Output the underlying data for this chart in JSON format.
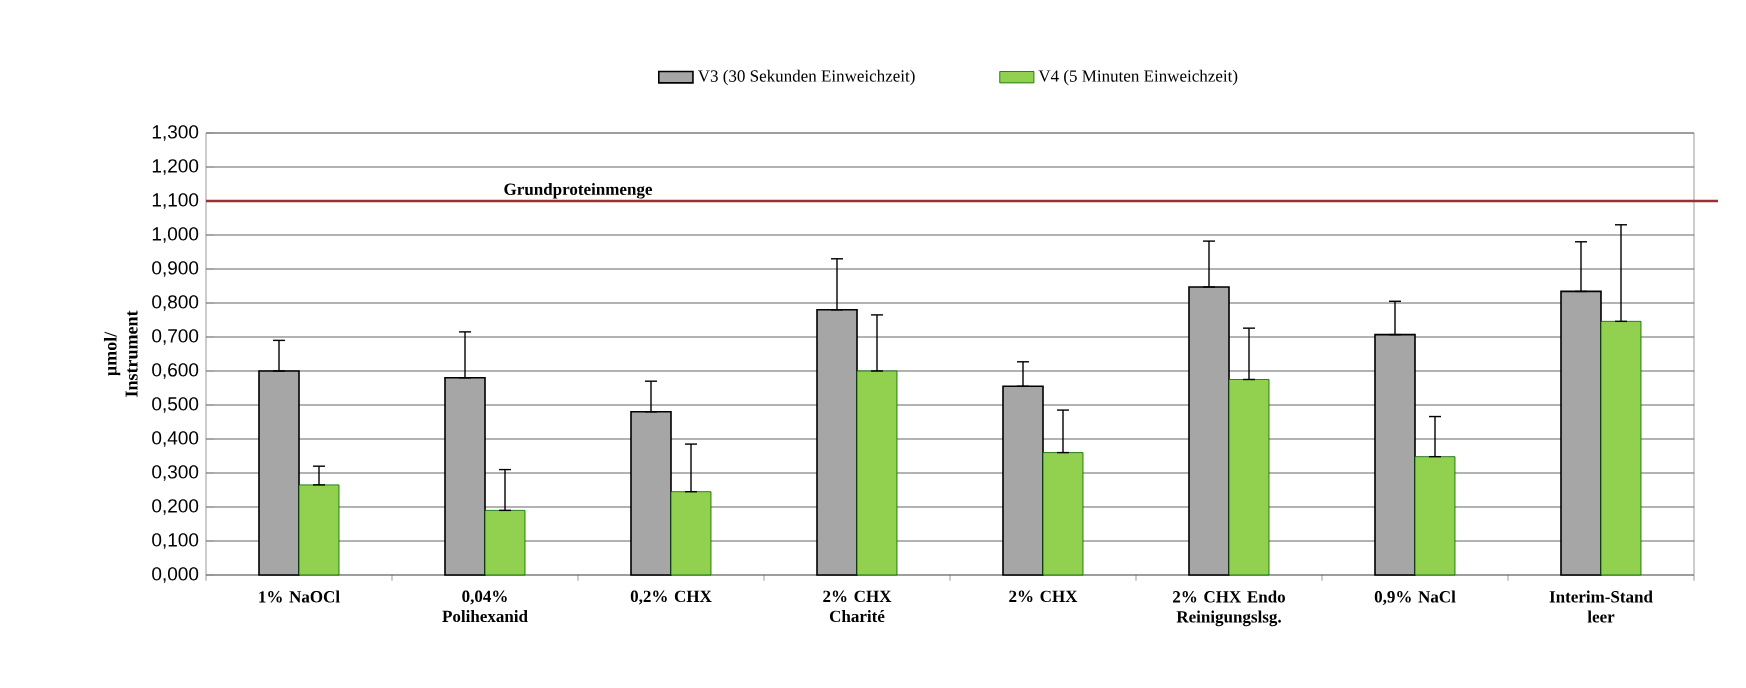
{
  "chart_data": {
    "type": "bar",
    "ylabel": "µmol/ Instrument",
    "categories": [
      "1% NaOCl",
      "0,04% Polihexanid",
      "0,2% CHX",
      "2% CHX Charité",
      "2% CHX",
      "2% CHX Endo Reinigungslsg.",
      "0,9% NaCl",
      "Interim-Stand leer"
    ],
    "series": [
      {
        "name": "V3 (30 Sekunden Einweichzeit)",
        "color": "#a6a6a6",
        "values": [
          0.6,
          0.58,
          0.48,
          0.78,
          0.555,
          0.847,
          0.707,
          0.834
        ],
        "errors": [
          [
            0.6,
            0.69
          ],
          [
            0.58,
            0.715
          ],
          [
            0.48,
            0.57
          ],
          [
            0.78,
            0.93
          ],
          [
            0.555,
            0.627
          ],
          [
            0.847,
            0.982
          ],
          [
            0.707,
            0.805
          ],
          [
            0.834,
            0.98
          ]
        ]
      },
      {
        "name": "V4 (5 Minuten Einweichzeit)",
        "color": "#92d050",
        "values": [
          0.265,
          0.19,
          0.245,
          0.6,
          0.36,
          0.575,
          0.348,
          0.746
        ],
        "errors": [
          [
            0.265,
            0.32
          ],
          [
            0.19,
            0.31
          ],
          [
            0.245,
            0.385
          ],
          [
            0.6,
            0.765
          ],
          [
            0.36,
            0.485
          ],
          [
            0.575,
            0.726
          ],
          [
            0.348,
            0.466
          ],
          [
            0.746,
            1.03
          ]
        ]
      }
    ],
    "ylim": [
      0,
      1.3
    ],
    "yticks": [
      {
        "value": 0,
        "label": "0,000"
      },
      {
        "value": 0.1,
        "label": "0,100"
      },
      {
        "value": 0.2,
        "label": "0,200"
      },
      {
        "value": 0.3,
        "label": "0,300"
      },
      {
        "value": 0.4,
        "label": "0,400"
      },
      {
        "value": 0.5,
        "label": "0,500"
      },
      {
        "value": 0.6,
        "label": "0,600"
      },
      {
        "value": 0.7,
        "label": "0,700"
      },
      {
        "value": 0.8,
        "label": "0,800"
      },
      {
        "value": 0.9,
        "label": "0,900"
      },
      {
        "value": 1.0,
        "label": "1,000"
      },
      {
        "value": 1.1,
        "label": "1,100"
      },
      {
        "value": 1.2,
        "label": "1,200"
      },
      {
        "value": 1.3,
        "label": "1,300"
      }
    ],
    "ref_lines": [
      {
        "axis": "y",
        "value": 1.1,
        "label": "Grundproteinmenge",
        "color": "#a03030"
      }
    ],
    "grid": "y",
    "legend": "top"
  }
}
